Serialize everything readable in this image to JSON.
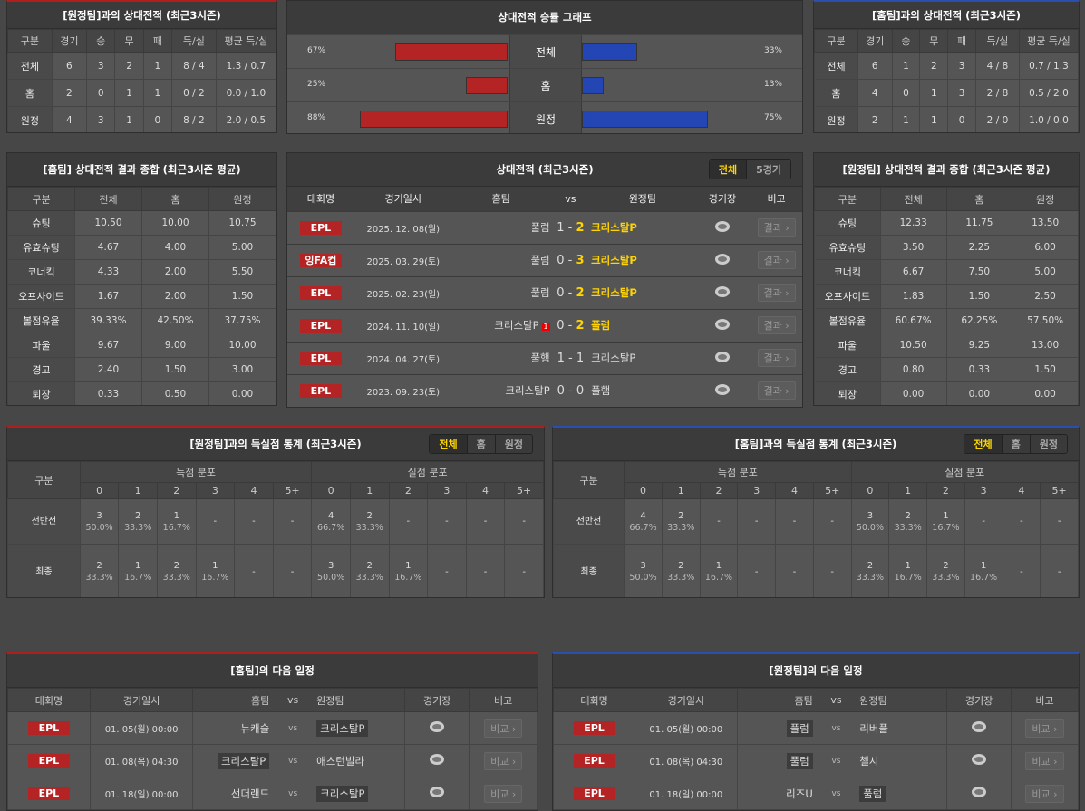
{
  "h2h_away": {
    "title": "[원정팀]과의 상대전적 (최근3시즌)",
    "headers": [
      "구분",
      "경기",
      "승",
      "무",
      "패",
      "득/실",
      "평균 득/실"
    ],
    "rows": [
      [
        "전체",
        "6",
        "3",
        "2",
        "1",
        "8 / 4",
        "1.3 / 0.7"
      ],
      [
        "홈",
        "2",
        "0",
        "1",
        "1",
        "0 / 2",
        "0.0 / 1.0"
      ],
      [
        "원정",
        "4",
        "3",
        "1",
        "0",
        "8 / 2",
        "2.0 / 0.5"
      ]
    ]
  },
  "graph": {
    "title": "상대전적 승률 그래프",
    "colors": {
      "home": "#b52424",
      "away": "#2446b5"
    },
    "rows": [
      {
        "label": "전체",
        "home_pct": 67,
        "away_pct": 33,
        "home_text": "67%",
        "away_text": "33%"
      },
      {
        "label": "홈",
        "home_pct": 25,
        "away_pct": 13,
        "home_text": "25%",
        "away_text": "13%"
      },
      {
        "label": "원정",
        "home_pct": 88,
        "away_pct": 75,
        "home_text": "88%",
        "away_text": "75%"
      }
    ]
  },
  "h2h_home": {
    "title": "[홈팀]과의 상대전적 (최근3시즌)",
    "headers": [
      "구분",
      "경기",
      "승",
      "무",
      "패",
      "득/실",
      "평균 득/실"
    ],
    "rows": [
      [
        "전체",
        "6",
        "1",
        "2",
        "3",
        "4 / 8",
        "0.7 / 1.3"
      ],
      [
        "홈",
        "4",
        "0",
        "1",
        "3",
        "2 / 8",
        "0.5 / 2.0"
      ],
      [
        "원정",
        "2",
        "1",
        "1",
        "0",
        "2 / 0",
        "1.0 / 0.0"
      ]
    ]
  },
  "summary_home": {
    "title": "[홈팀] 상대전적 결과 종합 (최근3시즌 평균)",
    "headers": [
      "구분",
      "전체",
      "홈",
      "원정"
    ],
    "rows": [
      [
        "슈팅",
        "10.50",
        "10.00",
        "10.75"
      ],
      [
        "유효슈팅",
        "4.67",
        "4.00",
        "5.00"
      ],
      [
        "코너킥",
        "4.33",
        "2.00",
        "5.50"
      ],
      [
        "오프사이드",
        "1.67",
        "2.00",
        "1.50"
      ],
      [
        "볼점유율",
        "39.33%",
        "42.50%",
        "37.75%"
      ],
      [
        "파울",
        "9.67",
        "9.00",
        "10.00"
      ],
      [
        "경고",
        "2.40",
        "1.50",
        "3.00"
      ],
      [
        "퇴장",
        "0.33",
        "0.50",
        "0.00"
      ]
    ]
  },
  "summary_away": {
    "title": "[원정팀] 상대전적 결과 종합 (최근3시즌 평균)",
    "headers": [
      "구분",
      "전체",
      "홈",
      "원정"
    ],
    "rows": [
      [
        "슈팅",
        "12.33",
        "11.75",
        "13.50"
      ],
      [
        "유효슈팅",
        "3.50",
        "2.25",
        "6.00"
      ],
      [
        "코너킥",
        "6.67",
        "7.50",
        "5.00"
      ],
      [
        "오프사이드",
        "1.83",
        "1.50",
        "2.50"
      ],
      [
        "볼점유율",
        "60.67%",
        "62.25%",
        "57.50%"
      ],
      [
        "파울",
        "10.50",
        "9.25",
        "13.00"
      ],
      [
        "경고",
        "0.80",
        "0.33",
        "1.50"
      ],
      [
        "퇴장",
        "0.00",
        "0.00",
        "0.00"
      ]
    ]
  },
  "matches": {
    "title": "상대전적 (최근3시즌)",
    "toggle": [
      "전체",
      "5경기"
    ],
    "headers": [
      "대회명",
      "경기일시",
      "홈팀",
      "vs",
      "원정팀",
      "경기장",
      "비고"
    ],
    "rows": [
      {
        "league": "EPL",
        "date": "2025. 12. 08(월)",
        "home": "풀럼",
        "hs": "1",
        "as": "2",
        "away": "크리스탈P",
        "winner": "away",
        "red": "",
        "btn": "결과 ›"
      },
      {
        "league": "잉FA컵",
        "date": "2025. 03. 29(토)",
        "home": "풀럼",
        "hs": "0",
        "as": "3",
        "away": "크리스탈P",
        "winner": "away",
        "red": "",
        "btn": "결과 ›"
      },
      {
        "league": "EPL",
        "date": "2025. 02. 23(일)",
        "home": "풀럼",
        "hs": "0",
        "as": "2",
        "away": "크리스탈P",
        "winner": "away",
        "red": "",
        "btn": "결과 ›"
      },
      {
        "league": "EPL",
        "date": "2024. 11. 10(일)",
        "home": "크리스탈P",
        "hs": "0",
        "as": "2",
        "away": "풀럼",
        "winner": "away",
        "red": "1",
        "btn": "결과 ›"
      },
      {
        "league": "EPL",
        "date": "2024. 04. 27(토)",
        "home": "풀햄",
        "hs": "1",
        "as": "1",
        "away": "크리스탈P",
        "winner": "",
        "red": "",
        "btn": "결과 ›"
      },
      {
        "league": "EPL",
        "date": "2023. 09. 23(토)",
        "home": "크리스탈P",
        "hs": "0",
        "as": "0",
        "away": "풀햄",
        "winner": "",
        "red": "",
        "btn": "결과 ›"
      }
    ]
  },
  "goals_away": {
    "title": "[원정팀]과의 득실점 통계 (최근3시즌)",
    "toggle": [
      "전체",
      "홈",
      "원정"
    ],
    "label": "구분",
    "scored": "득점 분포",
    "conceded": "실점 분포",
    "cols": [
      "0",
      "1",
      "2",
      "3",
      "4",
      "5+"
    ],
    "rows": [
      {
        "label": "전반전",
        "cells": [
          [
            "3",
            "50.0%"
          ],
          [
            "2",
            "33.3%"
          ],
          [
            "1",
            "16.7%"
          ],
          [
            "-",
            ""
          ],
          [
            "-",
            ""
          ],
          [
            "-",
            ""
          ],
          [
            "4",
            "66.7%"
          ],
          [
            "2",
            "33.3%"
          ],
          [
            "-",
            ""
          ],
          [
            "-",
            ""
          ],
          [
            "-",
            ""
          ],
          [
            "-",
            ""
          ]
        ]
      },
      {
        "label": "최종",
        "cells": [
          [
            "2",
            "33.3%"
          ],
          [
            "1",
            "16.7%"
          ],
          [
            "2",
            "33.3%"
          ],
          [
            "1",
            "16.7%"
          ],
          [
            "-",
            ""
          ],
          [
            "-",
            ""
          ],
          [
            "3",
            "50.0%"
          ],
          [
            "2",
            "33.3%"
          ],
          [
            "1",
            "16.7%"
          ],
          [
            "-",
            ""
          ],
          [
            "-",
            ""
          ],
          [
            "-",
            ""
          ]
        ]
      }
    ]
  },
  "goals_home": {
    "title": "[홈팀]과의 득실점 통계 (최근3시즌)",
    "toggle": [
      "전체",
      "홈",
      "원정"
    ],
    "label": "구분",
    "scored": "득점 분포",
    "conceded": "실점 분포",
    "cols": [
      "0",
      "1",
      "2",
      "3",
      "4",
      "5+"
    ],
    "rows": [
      {
        "label": "전반전",
        "cells": [
          [
            "4",
            "66.7%"
          ],
          [
            "2",
            "33.3%"
          ],
          [
            "-",
            ""
          ],
          [
            "-",
            ""
          ],
          [
            "-",
            ""
          ],
          [
            "-",
            ""
          ],
          [
            "3",
            "50.0%"
          ],
          [
            "2",
            "33.3%"
          ],
          [
            "1",
            "16.7%"
          ],
          [
            "-",
            ""
          ],
          [
            "-",
            ""
          ],
          [
            "-",
            ""
          ]
        ]
      },
      {
        "label": "최종",
        "cells": [
          [
            "3",
            "50.0%"
          ],
          [
            "2",
            "33.3%"
          ],
          [
            "1",
            "16.7%"
          ],
          [
            "-",
            ""
          ],
          [
            "-",
            ""
          ],
          [
            "-",
            ""
          ],
          [
            "2",
            "33.3%"
          ],
          [
            "1",
            "16.7%"
          ],
          [
            "2",
            "33.3%"
          ],
          [
            "1",
            "16.7%"
          ],
          [
            "-",
            ""
          ],
          [
            "-",
            ""
          ]
        ]
      }
    ]
  },
  "next_home": {
    "title": "[홈팀]의 다음 일정",
    "headers": [
      "대회명",
      "경기일시",
      "홈팀",
      "vs",
      "원정팀",
      "경기장",
      "비고"
    ],
    "rows": [
      {
        "league": "EPL",
        "date": "01. 05(월) 00:00",
        "home": "뉴캐슬",
        "away": "크리스탈P",
        "hl": "away",
        "vs": "vs",
        "btn": "비교 ›"
      },
      {
        "league": "EPL",
        "date": "01. 08(목) 04:30",
        "home": "크리스탈P",
        "away": "애스턴빌라",
        "hl": "home",
        "vs": "vs",
        "btn": "비교 ›"
      },
      {
        "league": "EPL",
        "date": "01. 18(일) 00:00",
        "home": "선더랜드",
        "away": "크리스탈P",
        "hl": "away",
        "vs": "vs",
        "btn": "비교 ›"
      }
    ]
  },
  "next_away": {
    "title": "[원정팀]의 다음 일정",
    "headers": [
      "대회명",
      "경기일시",
      "홈팀",
      "vs",
      "원정팀",
      "경기장",
      "비고"
    ],
    "rows": [
      {
        "league": "EPL",
        "date": "01. 05(월) 00:00",
        "home": "풀럼",
        "away": "리버풀",
        "hl": "home",
        "vs": "vs",
        "btn": "비교 ›"
      },
      {
        "league": "EPL",
        "date": "01. 08(목) 04:30",
        "home": "풀럼",
        "away": "첼시",
        "hl": "home",
        "vs": "vs",
        "btn": "비교 ›"
      },
      {
        "league": "EPL",
        "date": "01. 18(일) 00:00",
        "home": "리즈U",
        "away": "풀럼",
        "hl": "away",
        "vs": "vs",
        "btn": "비교 ›"
      }
    ]
  }
}
